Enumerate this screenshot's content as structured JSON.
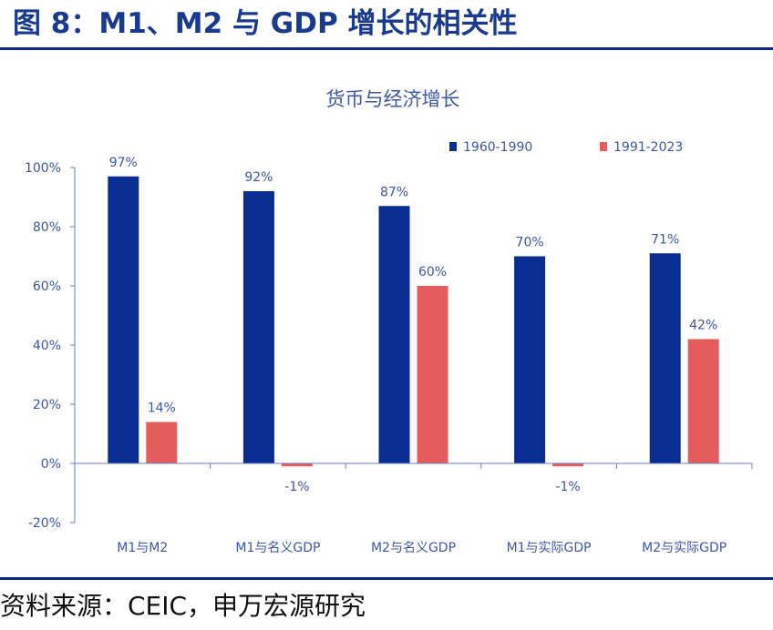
{
  "header": {
    "title": "图 8：M1、M2 与 GDP 增长的相关性"
  },
  "footer": {
    "source": "资料来源：CEIC，申万宏源研究"
  },
  "colors": {
    "title": "#1a3a8f",
    "rule": "#0d2a7a",
    "text": "#3d57a8",
    "series_1960": "#0a2d92",
    "series_1991": "#e55c5c"
  },
  "chart_data": {
    "type": "bar",
    "title": "货币与经济增长",
    "xlabel": "",
    "ylabel": "",
    "categories": [
      "M1与M2",
      "M1与名义GDP",
      "M2与名义GDP",
      "M1与实际GDP",
      "M2与实际GDP"
    ],
    "series": [
      {
        "name": "1960-1990",
        "color": "#0a2d92",
        "values": [
          97,
          92,
          87,
          70,
          71
        ],
        "labels": [
          "97%",
          "92%",
          "87%",
          "70%",
          "71%"
        ]
      },
      {
        "name": "1991-2023",
        "color": "#e55c5c",
        "values": [
          14,
          -1,
          60,
          -1,
          42
        ],
        "labels": [
          "14%",
          "-1%",
          "60%",
          "-1%",
          "42%"
        ]
      }
    ],
    "ylim": [
      -20,
      100
    ],
    "yticks": [
      -20,
      0,
      20,
      40,
      60,
      80,
      100
    ],
    "ytick_labels": [
      "-20%",
      "0%",
      "20%",
      "40%",
      "60%",
      "80%",
      "100%"
    ],
    "grid": false,
    "legend_position": "top-right"
  }
}
